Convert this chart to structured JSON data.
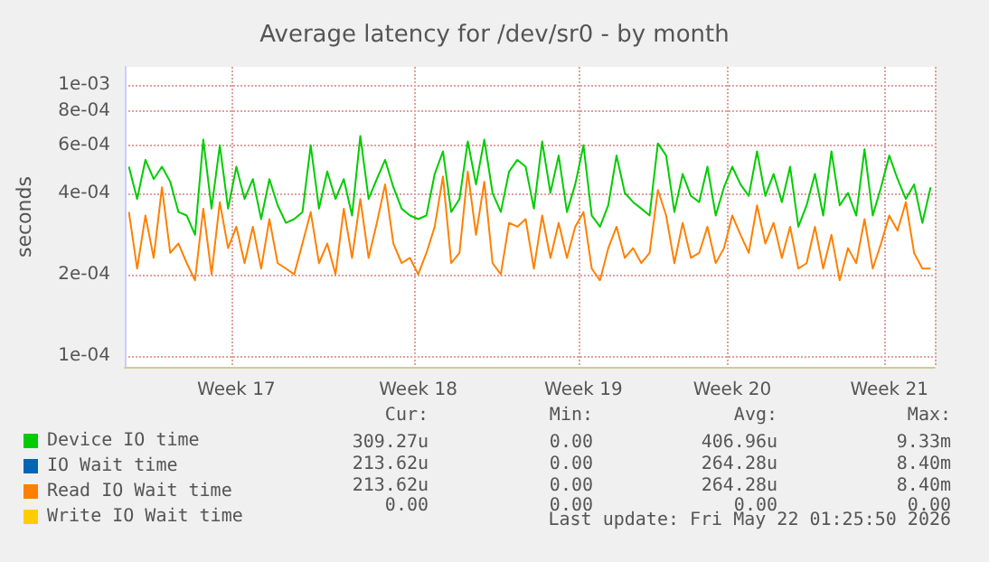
{
  "chart_data": {
    "type": "line",
    "title": "Average latency for /dev/sr0 - by month",
    "ylabel": "seconds",
    "log": "y",
    "grid": true,
    "legend": "bottom",
    "marker": "none",
    "line_style": "solid",
    "ylim": [
      9.1e-05,
      0.00117
    ],
    "categories": [
      null,
      null,
      null,
      null,
      null,
      null,
      null,
      null,
      null,
      null,
      null,
      null,
      null,
      "Week 17",
      null,
      null,
      null,
      null,
      null,
      null,
      null,
      null,
      null,
      null,
      null,
      null,
      null,
      null,
      null,
      null,
      null,
      null,
      null,
      null,
      null,
      "Week 18",
      null,
      null,
      null,
      null,
      null,
      null,
      null,
      null,
      null,
      null,
      null,
      null,
      null,
      null,
      null,
      null,
      null,
      null,
      null,
      "Week 19",
      null,
      null,
      null,
      null,
      null,
      null,
      null,
      null,
      null,
      null,
      null,
      null,
      null,
      null,
      null,
      null,
      null,
      "Week 20",
      null,
      null,
      null,
      null,
      null,
      null,
      null,
      null,
      null,
      null,
      null,
      null,
      null,
      null,
      null,
      null,
      null,
      null,
      "Week 21",
      null,
      null,
      null,
      null,
      null
    ],
    "yticks": [
      {
        "value": 0.0001,
        "label": "1e-04"
      },
      {
        "value": 0.0002,
        "label": "2e-04"
      },
      {
        "value": 0.0004,
        "label": "4e-04"
      },
      {
        "value": 0.0006,
        "label": "6e-04"
      },
      {
        "value": 0.0008,
        "label": "8e-04"
      },
      {
        "value": 0.001,
        "label": "1e-03"
      }
    ],
    "series": [
      {
        "name": "Device IO time",
        "color": "#00cc00",
        "values": [
          0.0005,
          0.00038,
          0.00053,
          0.00045,
          0.0005,
          0.00044,
          0.00034,
          0.00033,
          0.00028,
          0.00063,
          0.00035,
          0.0006,
          0.00035,
          0.0005,
          0.00038,
          0.00045,
          0.00032,
          0.00045,
          0.00036,
          0.00031,
          0.00032,
          0.00034,
          0.0006,
          0.00035,
          0.00048,
          0.00038,
          0.00045,
          0.00033,
          0.00065,
          0.00038,
          0.00045,
          0.00053,
          0.00042,
          0.00035,
          0.00033,
          0.00032,
          0.00033,
          0.00047,
          0.00057,
          0.00034,
          0.00038,
          0.00062,
          0.00043,
          0.00063,
          0.0004,
          0.00034,
          0.00048,
          0.00053,
          0.0005,
          0.00035,
          0.00062,
          0.0004,
          0.00055,
          0.00034,
          0.00043,
          0.0006,
          0.00033,
          0.0003,
          0.00036,
          0.00055,
          0.0004,
          0.00037,
          0.00035,
          0.00033,
          0.00061,
          0.00055,
          0.00034,
          0.00047,
          0.00039,
          0.00037,
          0.0005,
          0.00033,
          0.00042,
          0.0005,
          0.00043,
          0.00039,
          0.00057,
          0.00039,
          0.00047,
          0.00037,
          0.0005,
          0.0003,
          0.00036,
          0.00047,
          0.00033,
          0.00057,
          0.00036,
          0.0004,
          0.00033,
          0.00058,
          0.00033,
          0.00042,
          0.00055,
          0.00045,
          0.00038,
          0.00043,
          0.00031,
          0.00042
        ]
      },
      {
        "name": "IO Wait time",
        "color": "#0066b3",
        "values": [
          null,
          null,
          null,
          null,
          null,
          null,
          null,
          null,
          null,
          null,
          null,
          null,
          null,
          null,
          null,
          null,
          null,
          null,
          null,
          null,
          null,
          null,
          null,
          null,
          null,
          null,
          null,
          null,
          null,
          null,
          null,
          null,
          null,
          null,
          null,
          null,
          null,
          null,
          null,
          null,
          null,
          null,
          null,
          null,
          null,
          null,
          null,
          null,
          null,
          null,
          null,
          null,
          null,
          null,
          null,
          null,
          null,
          null,
          null,
          null,
          null,
          null,
          null,
          null,
          null,
          null,
          null,
          null,
          null,
          null,
          null,
          null,
          null,
          null,
          null,
          null,
          null,
          null,
          null,
          null,
          null,
          null,
          null,
          null,
          null,
          null,
          null,
          null,
          null,
          null,
          null,
          null,
          null,
          null,
          null,
          null,
          null,
          null
        ]
      },
      {
        "name": "Read IO Wait time",
        "color": "#ff8000",
        "values": [
          0.00034,
          0.00021,
          0.00033,
          0.00023,
          0.00042,
          0.00024,
          0.00026,
          0.00022,
          0.00019,
          0.00035,
          0.0002,
          0.00037,
          0.00025,
          0.0003,
          0.00022,
          0.0003,
          0.00021,
          0.00032,
          0.00022,
          0.00021,
          0.0002,
          0.00026,
          0.00034,
          0.00022,
          0.00026,
          0.0002,
          0.00035,
          0.00023,
          0.00038,
          0.00023,
          0.00031,
          0.00043,
          0.00026,
          0.00022,
          0.00023,
          0.0002,
          0.00024,
          0.0003,
          0.00046,
          0.00022,
          0.00024,
          0.00048,
          0.00028,
          0.00044,
          0.00022,
          0.0002,
          0.00031,
          0.0003,
          0.00032,
          0.00021,
          0.00033,
          0.00023,
          0.00031,
          0.00023,
          0.0003,
          0.00034,
          0.00021,
          0.00019,
          0.00025,
          0.0003,
          0.00023,
          0.00025,
          0.00022,
          0.00024,
          0.00041,
          0.00033,
          0.00022,
          0.00031,
          0.00023,
          0.00024,
          0.0003,
          0.00022,
          0.00025,
          0.00033,
          0.00028,
          0.00024,
          0.00036,
          0.00026,
          0.00031,
          0.00023,
          0.0003,
          0.00021,
          0.00022,
          0.0003,
          0.00021,
          0.00028,
          0.00019,
          0.00025,
          0.00022,
          0.00032,
          0.00021,
          0.00026,
          0.00033,
          0.00029,
          0.00037,
          0.00024,
          0.00021,
          0.00021
        ]
      },
      {
        "name": "Write IO Wait time",
        "color": "#ffcc00",
        "values": [
          null,
          null,
          null,
          null,
          null,
          null,
          null,
          null,
          null,
          null,
          null,
          null,
          null,
          null,
          null,
          null,
          null,
          null,
          null,
          null,
          null,
          null,
          null,
          null,
          null,
          null,
          null,
          null,
          null,
          null,
          null,
          null,
          null,
          null,
          null,
          null,
          null,
          null,
          null,
          null,
          null,
          null,
          null,
          null,
          null,
          null,
          null,
          null,
          null,
          null,
          null,
          null,
          null,
          null,
          null,
          null,
          null,
          null,
          null,
          null,
          null,
          null,
          null,
          null,
          null,
          null,
          null,
          null,
          null,
          null,
          null,
          null,
          null,
          null,
          null,
          null,
          null,
          null,
          null,
          null,
          null,
          null,
          null,
          null,
          null,
          null,
          null,
          null,
          null,
          null,
          null,
          null,
          null,
          null,
          null,
          null,
          null,
          null
        ]
      }
    ],
    "annotations": [
      "Cur:",
      "Min:",
      "Avg:",
      "Max:",
      "309.27u",
      "0.00",
      "406.96u",
      "9.33m",
      "213.62u",
      "0.00",
      "264.28u",
      "8.40m",
      "213.62u",
      "0.00",
      "264.28u",
      "8.40m",
      "0.00",
      "0.00",
      "0.00",
      "0.00",
      "Last update: Fri May 22 01:25:50 2026"
    ]
  }
}
